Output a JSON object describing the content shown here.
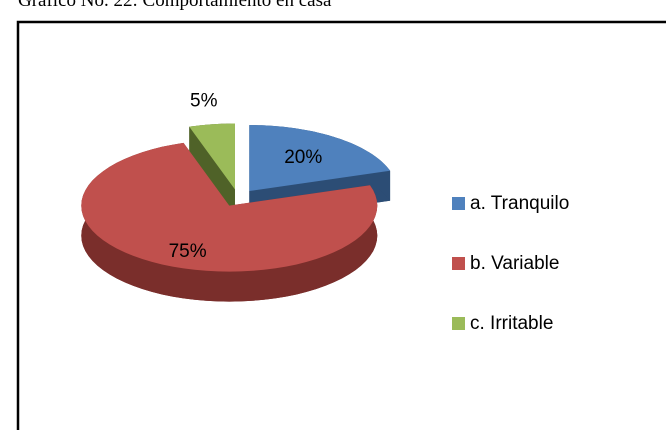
{
  "chart_data": {
    "type": "pie",
    "title": "Gráfico No. 22: Comportamiento en casa",
    "categories": [
      "a. Tranquilo",
      "b. Variable",
      "c. Irritable"
    ],
    "values": [
      20,
      75,
      5
    ],
    "value_labels": [
      "20%",
      "75%",
      "5%"
    ],
    "colors": [
      "#4f81bd",
      "#c0504d",
      "#9bbb59"
    ],
    "side_colors": [
      "#2c4d75",
      "#7a2e2b",
      "#4f6228"
    ],
    "legend": "right"
  }
}
